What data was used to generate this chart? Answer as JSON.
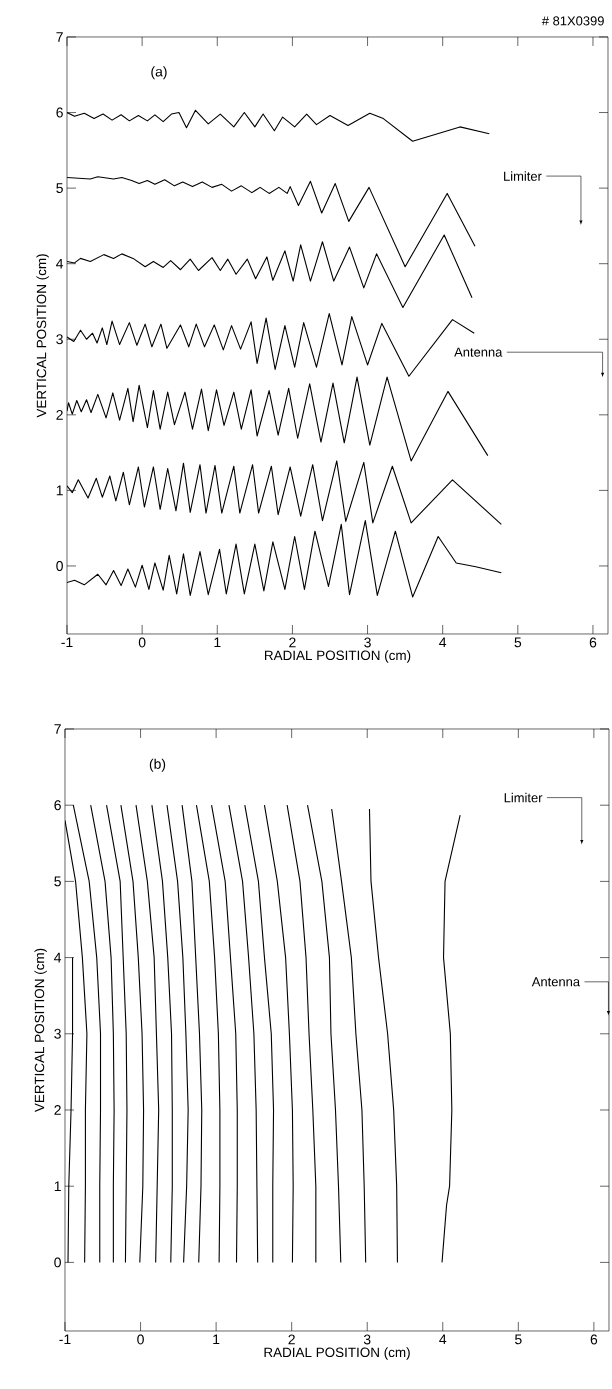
{
  "chart_data": [
    {
      "type": "line",
      "title": "(a)",
      "xlabel": "RADIAL POSITION (cm)",
      "ylabel": "VERTICAL POSITION (cm)",
      "xlim": [
        -1,
        6.2
      ],
      "ylim": [
        -0.9,
        7
      ],
      "xticks": [
        -1,
        0,
        1,
        2,
        3,
        4,
        5,
        6
      ],
      "yticks": [
        0,
        1,
        2,
        3,
        4,
        5,
        6,
        7
      ],
      "annotations": [
        "# 81X0399",
        "Limiter",
        "Antenna"
      ],
      "series": [
        {
          "color": "#000000",
          "x": [
            -1.0,
            -0.9,
            -0.77,
            -0.64,
            -0.52,
            -0.4,
            -0.28,
            -0.17,
            -0.05,
            0.07,
            0.17,
            0.28,
            0.39,
            0.49,
            0.59,
            0.71,
            0.88,
            1.04,
            1.22,
            1.36,
            1.5,
            1.61,
            1.76,
            1.87,
            2.03,
            2.19,
            2.32,
            2.5,
            2.74,
            3.03,
            3.21,
            3.6,
            4.23,
            4.62
          ],
          "values": [
            6.0,
            5.95,
            5.99,
            5.92,
            5.98,
            5.9,
            5.97,
            5.89,
            5.96,
            5.89,
            5.97,
            5.88,
            5.98,
            6.0,
            5.8,
            6.03,
            5.85,
            5.98,
            5.81,
            6.0,
            5.81,
            5.98,
            5.76,
            5.94,
            5.81,
            5.98,
            5.84,
            5.96,
            5.83,
            5.99,
            5.92,
            5.62,
            5.81,
            5.72
          ]
        },
        {
          "color": "#000000",
          "x": [
            -1.0,
            -0.69,
            -0.59,
            -0.38,
            -0.27,
            -0.14,
            -0.04,
            0.07,
            0.17,
            0.3,
            0.43,
            0.54,
            0.67,
            0.8,
            0.93,
            1.06,
            1.19,
            1.32,
            1.46,
            1.57,
            1.69,
            1.82,
            1.93,
            1.97,
            2.08,
            2.24,
            2.39,
            2.57,
            2.75,
            3.02,
            3.5,
            4.06,
            4.43
          ],
          "values": [
            5.14,
            5.12,
            5.15,
            5.12,
            5.14,
            5.1,
            5.06,
            5.1,
            5.05,
            5.11,
            5.03,
            5.08,
            5.02,
            5.08,
            5.01,
            5.05,
            4.96,
            5.03,
            4.94,
            5.01,
            4.93,
            5.01,
            4.93,
            5.02,
            4.77,
            5.09,
            4.67,
            5.06,
            4.56,
            5.01,
            3.96,
            4.93,
            4.23
          ]
        },
        {
          "color": "#000000",
          "x": [
            -1.0,
            -0.9,
            -0.82,
            -0.69,
            -0.51,
            -0.38,
            -0.27,
            -0.12,
            0.04,
            0.15,
            0.28,
            0.38,
            0.51,
            0.64,
            0.75,
            0.93,
            1.04,
            1.14,
            1.25,
            1.4,
            1.51,
            1.66,
            1.74,
            1.9,
            2.01,
            2.11,
            2.24,
            2.4,
            2.55,
            2.76,
            2.95,
            3.12,
            3.47,
            4.02,
            4.39
          ],
          "values": [
            4.03,
            4.01,
            4.07,
            4.03,
            4.12,
            4.07,
            4.13,
            4.07,
            3.96,
            4.03,
            3.95,
            4.04,
            3.92,
            4.06,
            3.91,
            4.08,
            3.91,
            4.06,
            3.86,
            4.06,
            3.8,
            4.09,
            3.78,
            4.17,
            3.77,
            4.25,
            3.77,
            4.29,
            3.77,
            4.22,
            3.68,
            4.13,
            3.42,
            4.38,
            3.55
          ]
        },
        {
          "color": "#000000",
          "x": [
            -1.0,
            -0.91,
            -0.82,
            -0.74,
            -0.66,
            -0.6,
            -0.53,
            -0.47,
            -0.4,
            -0.3,
            -0.17,
            -0.07,
            0.04,
            0.13,
            0.25,
            0.33,
            0.51,
            0.62,
            0.72,
            0.83,
            0.96,
            1.08,
            1.19,
            1.31,
            1.45,
            1.53,
            1.65,
            1.77,
            1.9,
            2.03,
            2.15,
            2.32,
            2.49,
            2.66,
            2.79,
            3.0,
            3.19,
            3.55,
            4.13,
            4.42
          ],
          "values": [
            3.03,
            2.97,
            3.12,
            3.0,
            3.08,
            2.95,
            3.15,
            2.93,
            3.24,
            2.93,
            3.22,
            2.92,
            3.2,
            2.9,
            3.2,
            2.88,
            3.19,
            2.9,
            3.2,
            2.9,
            3.19,
            2.86,
            3.18,
            2.87,
            3.23,
            2.68,
            3.28,
            2.6,
            3.18,
            2.63,
            3.22,
            2.63,
            3.34,
            2.66,
            3.3,
            2.66,
            3.21,
            2.51,
            3.26,
            3.08
          ]
        },
        {
          "color": "#000000",
          "x": [
            -1.0,
            -0.98,
            -0.93,
            -0.87,
            -0.81,
            -0.74,
            -0.68,
            -0.59,
            -0.48,
            -0.39,
            -0.3,
            -0.19,
            -0.12,
            -0.04,
            0.07,
            0.15,
            0.24,
            0.34,
            0.43,
            0.57,
            0.67,
            0.79,
            0.88,
            0.99,
            1.09,
            1.22,
            1.32,
            1.45,
            1.53,
            1.69,
            1.81,
            1.95,
            2.07,
            2.23,
            2.38,
            2.54,
            2.69,
            2.86,
            3.03,
            3.26,
            3.58,
            4.07,
            4.6
          ],
          "values": [
            2.05,
            2.16,
            2.01,
            2.19,
            2.04,
            2.2,
            2.03,
            2.27,
            1.96,
            2.29,
            1.93,
            2.35,
            1.91,
            2.39,
            1.83,
            2.32,
            1.81,
            2.3,
            1.87,
            2.3,
            1.81,
            2.34,
            1.79,
            2.33,
            1.86,
            2.3,
            1.81,
            2.33,
            1.72,
            2.32,
            1.73,
            2.35,
            1.69,
            2.41,
            1.64,
            2.42,
            1.63,
            2.5,
            1.6,
            2.5,
            1.39,
            2.31,
            1.46
          ]
        },
        {
          "color": "#000000",
          "x": [
            -1.0,
            -0.93,
            -0.85,
            -0.72,
            -0.61,
            -0.53,
            -0.43,
            -0.35,
            -0.25,
            -0.17,
            -0.05,
            0.03,
            0.15,
            0.24,
            0.34,
            0.45,
            0.55,
            0.64,
            0.77,
            0.85,
            0.97,
            1.06,
            1.22,
            1.3,
            1.47,
            1.55,
            1.72,
            1.81,
            1.97,
            2.11,
            2.27,
            2.4,
            2.59,
            2.71,
            2.95,
            3.07,
            3.33,
            3.58,
            4.13,
            4.78
          ],
          "values": [
            1.06,
            0.97,
            1.14,
            0.9,
            1.16,
            0.91,
            1.19,
            0.86,
            1.24,
            0.81,
            1.31,
            0.78,
            1.31,
            0.75,
            1.29,
            0.73,
            1.36,
            0.71,
            1.34,
            0.7,
            1.33,
            0.7,
            1.32,
            0.7,
            1.34,
            0.7,
            1.32,
            0.68,
            1.31,
            0.66,
            1.34,
            0.6,
            1.39,
            0.59,
            1.37,
            0.57,
            1.32,
            0.57,
            1.14,
            0.55
          ]
        },
        {
          "color": "#000000",
          "x": [
            -1.0,
            -0.9,
            -0.77,
            -0.59,
            -0.48,
            -0.38,
            -0.28,
            -0.19,
            -0.09,
            0.0,
            0.09,
            0.17,
            0.28,
            0.36,
            0.46,
            0.55,
            0.64,
            0.77,
            0.88,
            1.03,
            1.12,
            1.25,
            1.36,
            1.5,
            1.62,
            1.74,
            1.9,
            2.03,
            2.16,
            2.3,
            2.48,
            2.65,
            2.76,
            2.97,
            3.13,
            3.37,
            3.6,
            3.94,
            4.18,
            4.44,
            4.78
          ],
          "values": [
            -0.22,
            -0.19,
            -0.25,
            -0.11,
            -0.25,
            -0.06,
            -0.26,
            -0.04,
            -0.28,
            0.01,
            -0.31,
            0.04,
            -0.32,
            0.14,
            -0.37,
            0.16,
            -0.39,
            0.19,
            -0.38,
            0.22,
            -0.37,
            0.29,
            -0.37,
            0.29,
            -0.33,
            0.32,
            -0.31,
            0.39,
            -0.31,
            0.46,
            -0.27,
            0.55,
            -0.38,
            0.6,
            -0.39,
            0.46,
            -0.41,
            0.39,
            0.04,
            -0.01,
            -0.09
          ]
        }
      ]
    },
    {
      "type": "line",
      "title": "(b)",
      "xlabel": "RADIAL POSITION (cm)",
      "ylabel": "VERTICAL POSITION (cm)",
      "xlim": [
        -1,
        6.2
      ],
      "ylim": [
        -0.9,
        7
      ],
      "xticks": [
        -1,
        0,
        1,
        2,
        3,
        4,
        5,
        6
      ],
      "yticks": [
        0,
        1,
        2,
        3,
        4,
        5,
        6,
        7
      ],
      "annotations": [
        "Limiter",
        "Antenna"
      ],
      "series": [
        {
          "color": "#000000",
          "x": [
            -0.9,
            -0.9,
            -0.92,
            -0.95,
            -0.96
          ],
          "values": [
            4,
            3,
            2,
            1,
            0
          ]
        },
        {
          "color": "#000000",
          "x": [
            -1.0,
            -0.86,
            -0.77,
            -0.71,
            -0.73,
            -0.73,
            -0.74
          ],
          "values": [
            5.8,
            5,
            4,
            3,
            2,
            1,
            0
          ]
        },
        {
          "color": "#000000",
          "x": [
            -0.89,
            -0.68,
            -0.58,
            -0.53,
            -0.53,
            -0.54,
            -0.54
          ],
          "values": [
            6,
            5,
            4,
            3,
            2,
            1,
            0
          ]
        },
        {
          "color": "#000000",
          "x": [
            -0.66,
            -0.47,
            -0.39,
            -0.36,
            -0.35,
            -0.36,
            -0.36
          ],
          "values": [
            6,
            5,
            4,
            3,
            2,
            1,
            0
          ]
        },
        {
          "color": "#000000",
          "x": [
            -0.45,
            -0.27,
            -0.23,
            -0.19,
            -0.18,
            -0.19,
            -0.2
          ],
          "values": [
            6,
            5,
            4,
            3,
            2,
            1,
            0
          ]
        },
        {
          "color": "#000000",
          "x": [
            -0.26,
            -0.1,
            -0.03,
            0.02,
            0.04,
            0.03,
            -0.01
          ],
          "values": [
            6,
            5,
            4,
            3,
            2,
            1,
            0
          ]
        },
        {
          "color": "#000000",
          "x": [
            -0.06,
            0.09,
            0.18,
            0.21,
            0.24,
            0.22,
            0.2
          ],
          "values": [
            6,
            5,
            4,
            3,
            2,
            1,
            0
          ]
        },
        {
          "color": "#000000",
          "x": [
            0.15,
            0.29,
            0.36,
            0.41,
            0.42,
            0.42,
            0.4
          ],
          "values": [
            6,
            5,
            4,
            3,
            2,
            1,
            0
          ]
        },
        {
          "color": "#000000",
          "x": [
            0.35,
            0.49,
            0.56,
            0.6,
            0.63,
            0.61,
            0.57
          ],
          "values": [
            6,
            5,
            4,
            3,
            2,
            1,
            0
          ]
        },
        {
          "color": "#000000",
          "x": [
            0.55,
            0.68,
            0.73,
            0.78,
            0.81,
            0.8,
            0.77
          ],
          "values": [
            6,
            5,
            4,
            3,
            2,
            1,
            0
          ]
        },
        {
          "color": "#000000",
          "x": [
            0.74,
            0.91,
            0.98,
            1.03,
            1.05,
            1.05,
            1.04
          ],
          "values": [
            6,
            5,
            4,
            3,
            2,
            1,
            0
          ]
        },
        {
          "color": "#000000",
          "x": [
            0.94,
            1.12,
            1.19,
            1.26,
            1.28,
            1.28,
            1.27
          ],
          "values": [
            6,
            5,
            4,
            3,
            2,
            1,
            0
          ]
        },
        {
          "color": "#000000",
          "x": [
            1.17,
            1.35,
            1.43,
            1.5,
            1.53,
            1.54,
            1.55
          ],
          "values": [
            6,
            5,
            4,
            3,
            2,
            1,
            0
          ]
        },
        {
          "color": "#000000",
          "x": [
            1.38,
            1.56,
            1.64,
            1.73,
            1.76,
            1.75,
            1.75
          ],
          "values": [
            6,
            5,
            4,
            3,
            2,
            1,
            0
          ]
        },
        {
          "color": "#000000",
          "x": [
            1.64,
            1.81,
            1.92,
            1.97,
            2.01,
            2.02,
            2.01
          ],
          "values": [
            6,
            5,
            4,
            3,
            2,
            1,
            0
          ]
        },
        {
          "color": "#000000",
          "x": [
            1.94,
            2.11,
            2.19,
            2.23,
            2.28,
            2.32,
            2.32
          ],
          "values": [
            6,
            5,
            4,
            3,
            2,
            1,
            0
          ]
        },
        {
          "color": "#000000",
          "x": [
            2.21,
            2.4,
            2.5,
            2.52,
            2.58,
            2.62,
            2.65
          ],
          "values": [
            6,
            5,
            4,
            3,
            2,
            1,
            0
          ]
        },
        {
          "color": "#000000",
          "x": [
            2.53,
            2.66,
            2.79,
            2.85,
            2.93,
            2.96,
            2.98
          ],
          "values": [
            5.95,
            5,
            4,
            3,
            2,
            1,
            0
          ]
        },
        {
          "color": "#000000",
          "x": [
            3.03,
            3.05,
            3.15,
            3.27,
            3.35,
            3.39,
            3.4
          ],
          "values": [
            5.95,
            5,
            4,
            3,
            2,
            1,
            0
          ]
        },
        {
          "color": "#000000",
          "x": [
            4.23,
            4.03,
            4.01,
            4.1,
            4.12,
            4.09,
            4.05,
            3.99
          ],
          "values": [
            5.87,
            5,
            4,
            3,
            2,
            1,
            0.75,
            0
          ]
        }
      ]
    }
  ]
}
